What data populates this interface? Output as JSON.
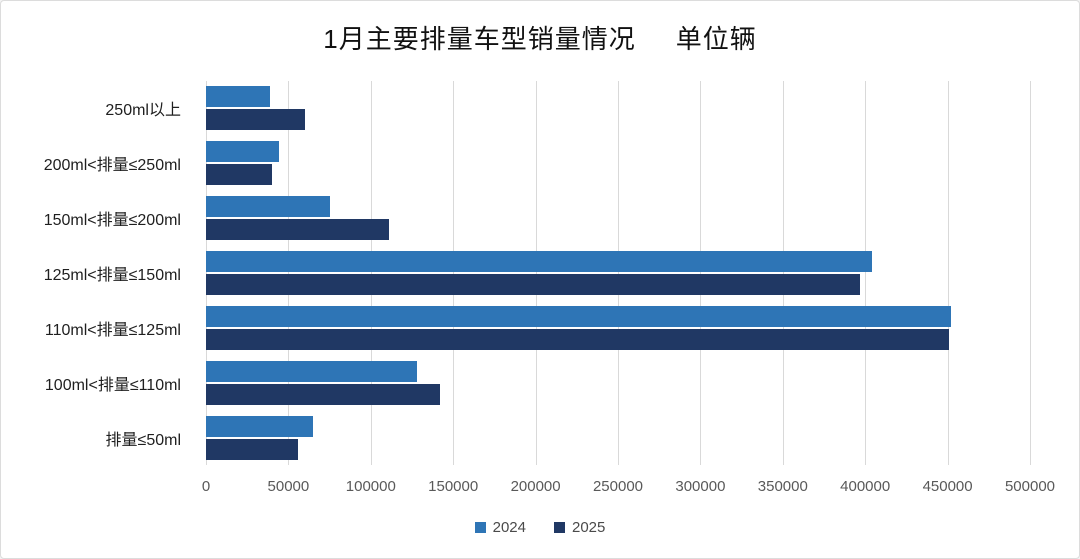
{
  "title": {
    "main": "1月主要排量车型销量情况",
    "unit": "单位辆"
  },
  "chart_data": {
    "type": "bar",
    "orientation": "horizontal",
    "title": "1月主要排量车型销量情况 单位辆",
    "categories": [
      "250ml以上",
      "200ml<排量≤250ml",
      "150ml<排量≤200ml",
      "125ml<排量≤150ml",
      "110ml<排量≤125ml",
      "100ml<排量≤110ml",
      "排量≤50ml"
    ],
    "series": [
      {
        "name": "2024",
        "color": "#2E75B6",
        "values": [
          39000,
          44000,
          75000,
          404000,
          452000,
          128000,
          65000
        ]
      },
      {
        "name": "2025",
        "color": "#203864",
        "values": [
          60000,
          40000,
          111000,
          397000,
          451000,
          142000,
          56000
        ]
      }
    ],
    "xlabel": "",
    "ylabel": "",
    "xlim": [
      0,
      500000
    ],
    "x_ticks": [
      0,
      50000,
      100000,
      150000,
      200000,
      250000,
      300000,
      350000,
      400000,
      450000,
      500000
    ],
    "grid": true,
    "gridline_color": "#d9d9d9",
    "legend_position": "bottom"
  }
}
